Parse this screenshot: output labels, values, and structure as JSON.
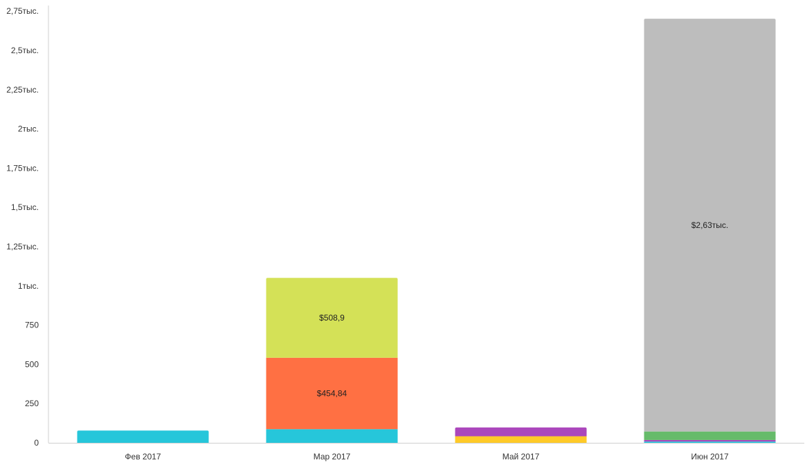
{
  "chart_data": {
    "type": "bar",
    "stacked": true,
    "categories": [
      "Фев 2017",
      "Мар 2017",
      "Май 2017",
      "Июн 2017"
    ],
    "y_ticks": [
      {
        "value": 0,
        "label": "0"
      },
      {
        "value": 250,
        "label": "250"
      },
      {
        "value": 500,
        "label": "500"
      },
      {
        "value": 750,
        "label": "750"
      },
      {
        "value": 1000,
        "label": "1тыс."
      },
      {
        "value": 1250,
        "label": "1,25тыс."
      },
      {
        "value": 1500,
        "label": "1,5тыс."
      },
      {
        "value": 1750,
        "label": "1,75тыс."
      },
      {
        "value": 2000,
        "label": "2тыс."
      },
      {
        "value": 2250,
        "label": "2,25тыс."
      },
      {
        "value": 2500,
        "label": "2,5тыс."
      },
      {
        "value": 2750,
        "label": "2,75тыс."
      }
    ],
    "ylim": [
      0,
      2800
    ],
    "grid": false,
    "series": [
      {
        "color": "#26C6DA",
        "values": [
          78,
          87,
          0,
          8
        ],
        "labels": [
          "",
          "",
          "",
          ""
        ]
      },
      {
        "color": "#FF7043",
        "values": [
          0,
          454.84,
          0,
          0
        ],
        "labels": [
          "",
          "$454,84",
          "",
          ""
        ]
      },
      {
        "color": "#D4E157",
        "values": [
          0,
          508.9,
          0,
          0
        ],
        "labels": [
          "",
          "$508,9",
          "",
          ""
        ]
      },
      {
        "color": "#FFCA28",
        "values": [
          0,
          0,
          42,
          0
        ],
        "labels": [
          "",
          "",
          "",
          ""
        ]
      },
      {
        "color": "#AB47BC",
        "values": [
          0,
          0,
          56,
          10
        ],
        "labels": [
          "",
          "",
          "",
          ""
        ]
      },
      {
        "color": "#66BB6A",
        "values": [
          0,
          0,
          0,
          54
        ],
        "labels": [
          "",
          "",
          "",
          ""
        ]
      },
      {
        "color": "#BDBDBD",
        "values": [
          0,
          0,
          0,
          2630
        ],
        "labels": [
          "",
          "",
          "",
          "$2,63тыс."
        ]
      }
    ]
  }
}
